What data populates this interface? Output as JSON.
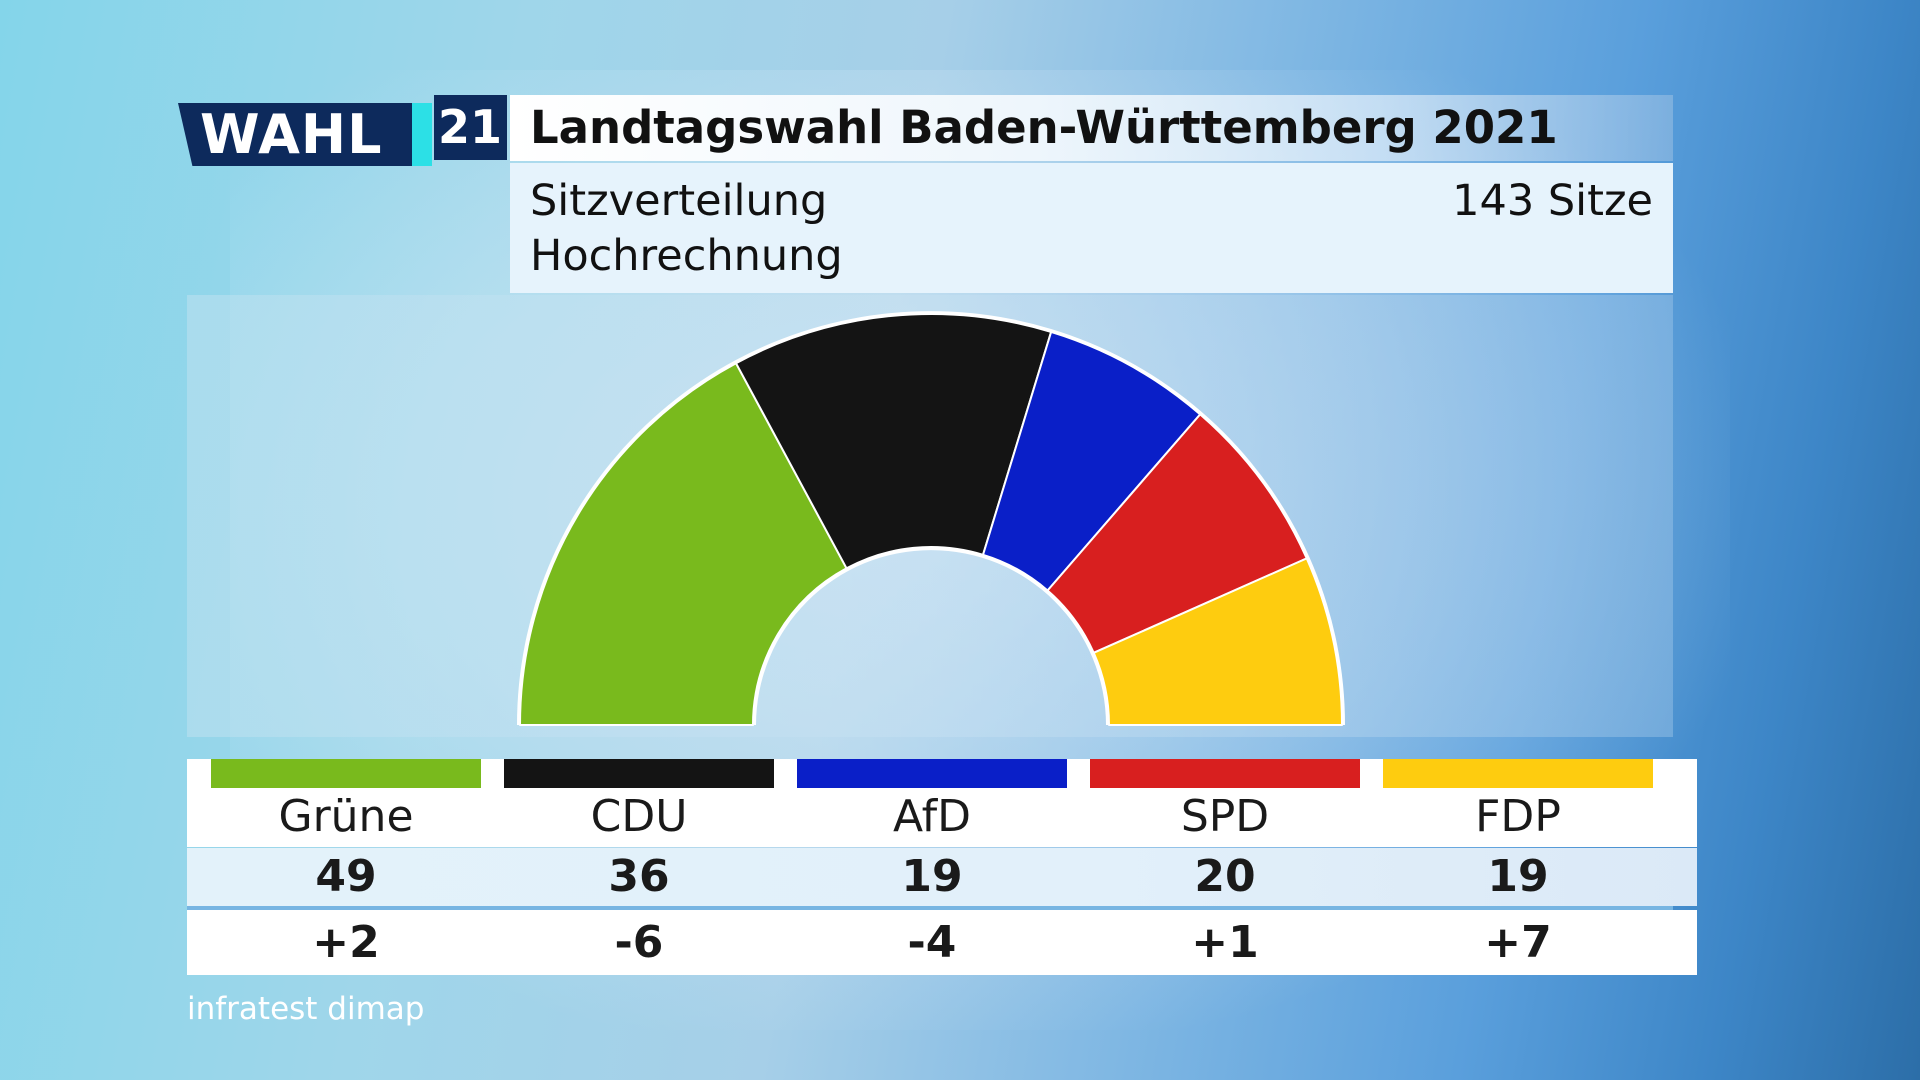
{
  "logo": {
    "word": "WAHL",
    "year": "21"
  },
  "title": "Landtagswahl Baden-Württemberg 2021",
  "subtitle_line1": "Sitzverteilung",
  "subtitle_line2": "Hochrechnung",
  "total_seats_label": "143 Sitze",
  "source": "infratest dimap",
  "chart_data": {
    "type": "pie",
    "variant": "hemicycle",
    "title": "Landtagswahl Baden-Württemberg 2021",
    "subtitle": "Sitzverteilung Hochrechnung",
    "total_label": "143 Sitze",
    "categories": [
      "Grüne",
      "CDU",
      "AfD",
      "SPD",
      "FDP"
    ],
    "values": [
      49,
      36,
      19,
      20,
      19
    ],
    "changes": [
      "+2",
      "-6",
      "-4",
      "+1",
      "+7"
    ],
    "colors": [
      "#79ba1d",
      "#141414",
      "#0a1fc8",
      "#d81f1f",
      "#fecc0f"
    ],
    "source": "infratest dimap"
  }
}
